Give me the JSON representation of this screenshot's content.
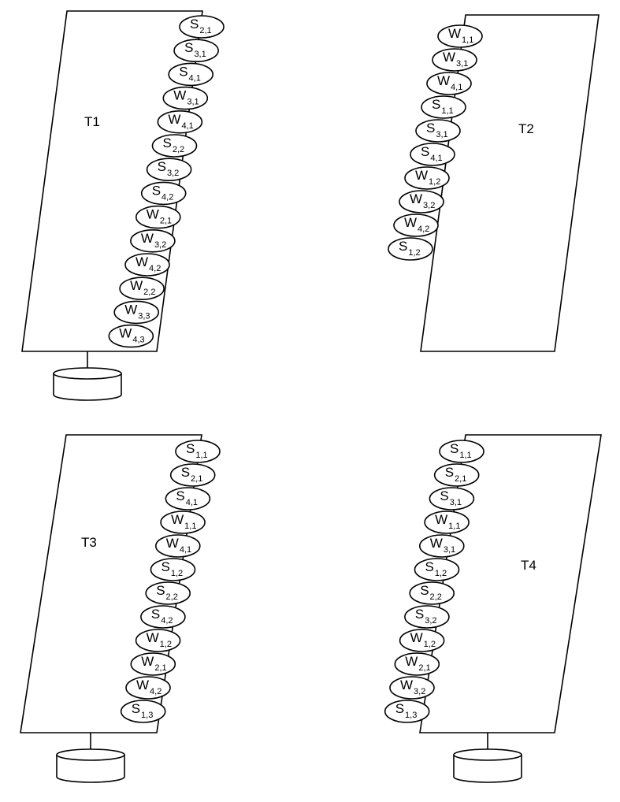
{
  "panels": [
    {
      "label": "T1",
      "nodes": [
        {
          "letter": "S",
          "sub": "2,1"
        },
        {
          "letter": "S",
          "sub": "3,1"
        },
        {
          "letter": "S",
          "sub": "4,1"
        },
        {
          "letter": "W",
          "sub": "3,1"
        },
        {
          "letter": "W",
          "sub": "4,1"
        },
        {
          "letter": "S",
          "sub": "2,2"
        },
        {
          "letter": "S",
          "sub": "3,2"
        },
        {
          "letter": "S",
          "sub": "4,2"
        },
        {
          "letter": "W",
          "sub": "2,1"
        },
        {
          "letter": "W",
          "sub": "3,2"
        },
        {
          "letter": "W",
          "sub": "4,2"
        },
        {
          "letter": "W",
          "sub": "2,2"
        },
        {
          "letter": "W",
          "sub": "3,3"
        },
        {
          "letter": "W",
          "sub": "4,3"
        }
      ]
    },
    {
      "label": "T2",
      "nodes": [
        {
          "letter": "W",
          "sub": "1,1"
        },
        {
          "letter": "W",
          "sub": "3,1"
        },
        {
          "letter": "W",
          "sub": "4,1"
        },
        {
          "letter": "S",
          "sub": "1,1"
        },
        {
          "letter": "S",
          "sub": "3,1"
        },
        {
          "letter": "S",
          "sub": "4,1"
        },
        {
          "letter": "W",
          "sub": "1,2"
        },
        {
          "letter": "W",
          "sub": "3,2"
        },
        {
          "letter": "W",
          "sub": "4,2"
        },
        {
          "letter": "S",
          "sub": "1,2"
        }
      ]
    },
    {
      "label": "T3",
      "nodes": [
        {
          "letter": "S",
          "sub": "1,1"
        },
        {
          "letter": "S",
          "sub": "2,1"
        },
        {
          "letter": "S",
          "sub": "4,1"
        },
        {
          "letter": "W",
          "sub": "1,1"
        },
        {
          "letter": "W",
          "sub": "4,1"
        },
        {
          "letter": "S",
          "sub": "1,2"
        },
        {
          "letter": "S",
          "sub": "2,2"
        },
        {
          "letter": "S",
          "sub": "4,2"
        },
        {
          "letter": "W",
          "sub": "1,2"
        },
        {
          "letter": "W",
          "sub": "2,1"
        },
        {
          "letter": "W",
          "sub": "4,2"
        },
        {
          "letter": "S",
          "sub": "1,3"
        }
      ]
    },
    {
      "label": "T4",
      "nodes": [
        {
          "letter": "S",
          "sub": "1,1"
        },
        {
          "letter": "S",
          "sub": "2,1"
        },
        {
          "letter": "S",
          "sub": "3,1"
        },
        {
          "letter": "W",
          "sub": "1,1"
        },
        {
          "letter": "W",
          "sub": "3,1"
        },
        {
          "letter": "S",
          "sub": "1,2"
        },
        {
          "letter": "S",
          "sub": "2,2"
        },
        {
          "letter": "S",
          "sub": "3,2"
        },
        {
          "letter": "W",
          "sub": "1,2"
        },
        {
          "letter": "W",
          "sub": "2,1"
        },
        {
          "letter": "W",
          "sub": "3,2"
        },
        {
          "letter": "S",
          "sub": "1,3"
        }
      ]
    }
  ]
}
